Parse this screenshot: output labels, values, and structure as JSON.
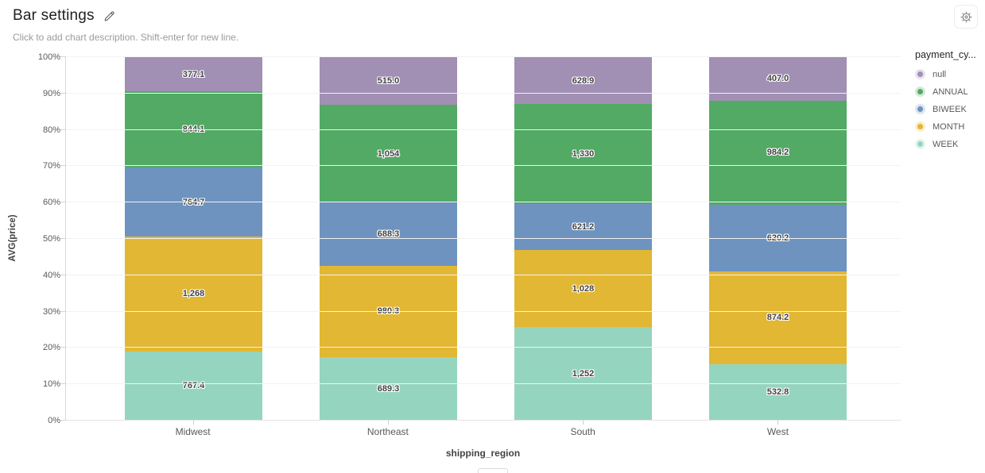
{
  "header": {
    "title": "Bar settings",
    "description_placeholder": "Click to add chart description. Shift-enter for new line."
  },
  "icons": {
    "edit": "pencil-icon",
    "settings": "gear-icon"
  },
  "chart_data": {
    "type": "bar",
    "variant": "100%-stacked-vertical",
    "title": "",
    "xlabel": "shipping_region",
    "ylabel": "AVG(price)",
    "categories": [
      "Midwest",
      "Northeast",
      "South",
      "West"
    ],
    "series": [
      {
        "name": "WEEK",
        "color": "#95d5bf",
        "values": [
          767.4,
          689.3,
          1252,
          532.8
        ],
        "labels": [
          "767.4",
          "689.3",
          "1,252",
          "532.8"
        ]
      },
      {
        "name": "MONTH",
        "color": "#e2b733",
        "values": [
          1268,
          980.3,
          1028,
          874.2
        ],
        "labels": [
          "1,268",
          "980.3",
          "1,028",
          "874.2"
        ]
      },
      {
        "name": "BIWEEK",
        "color": "#6e93bf",
        "values": [
          764.7,
          688.3,
          621.2,
          620.2
        ],
        "labels": [
          "764.7",
          "688.3",
          "621.2",
          "620.2"
        ]
      },
      {
        "name": "ANNUAL",
        "color": "#52aa65",
        "values": [
          844.1,
          1054,
          1330,
          984.2
        ],
        "labels": [
          "844.1",
          "1,054",
          "1,330",
          "984.2"
        ]
      },
      {
        "name": "null",
        "color": "#a18fb4",
        "values": [
          377.1,
          515.0,
          628.9,
          407.0
        ],
        "labels": [
          "377.1",
          "515.0",
          "628.9",
          "407.0"
        ]
      }
    ],
    "stack_order": "bottom-to-top as listed",
    "y_ticks": [
      "0%",
      "10%",
      "20%",
      "30%",
      "40%",
      "50%",
      "60%",
      "70%",
      "80%",
      "90%",
      "100%"
    ],
    "ylim": [
      0,
      100
    ],
    "grid": true,
    "legend": {
      "title": "payment_cy...",
      "position": "right",
      "items": [
        "null",
        "ANNUAL",
        "BIWEEK",
        "MONTH",
        "WEEK"
      ]
    }
  }
}
